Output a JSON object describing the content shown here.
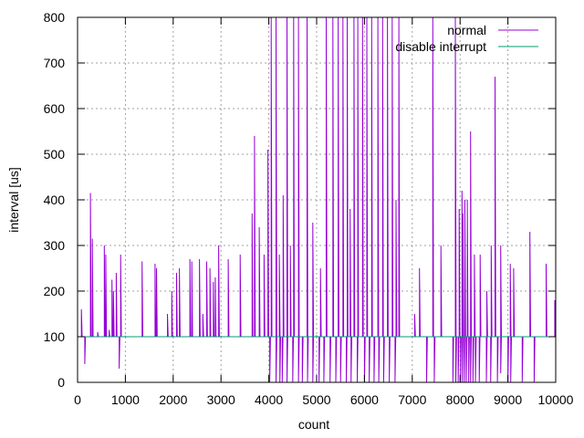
{
  "chart_data": {
    "type": "line",
    "title": "",
    "xlabel": "count",
    "ylabel": "interval [us]",
    "xlim": [
      0,
      10000
    ],
    "ylim": [
      0,
      800
    ],
    "x_ticks": [
      0,
      1000,
      2000,
      3000,
      4000,
      5000,
      6000,
      7000,
      8000,
      9000,
      10000
    ],
    "y_ticks": [
      0,
      100,
      200,
      300,
      400,
      500,
      600,
      700,
      800
    ],
    "x_tick_labels": [
      "0",
      "1000",
      "2000",
      "3000",
      "4000",
      "5000",
      "6000",
      "7000",
      "8000",
      "9000",
      "10000"
    ],
    "y_tick_labels": [
      "0",
      "100",
      "200",
      "300",
      "400",
      "500",
      "600",
      "700",
      "800"
    ],
    "grid": true,
    "legend_position": "top-right",
    "series": [
      {
        "name": "normal",
        "color": "#9400d3",
        "baseline": 100,
        "spikes": [
          [
            80,
            160
          ],
          [
            150,
            40
          ],
          [
            270,
            415
          ],
          [
            310,
            315
          ],
          [
            420,
            110
          ],
          [
            560,
            300
          ],
          [
            590,
            280
          ],
          [
            660,
            115
          ],
          [
            720,
            225
          ],
          [
            750,
            200
          ],
          [
            810,
            240
          ],
          [
            870,
            30
          ],
          [
            900,
            280
          ],
          [
            1350,
            265
          ],
          [
            1620,
            260
          ],
          [
            1650,
            250
          ],
          [
            1880,
            150
          ],
          [
            1970,
            200
          ],
          [
            2070,
            240
          ],
          [
            2130,
            250
          ],
          [
            2350,
            270
          ],
          [
            2390,
            265
          ],
          [
            2550,
            270
          ],
          [
            2620,
            150
          ],
          [
            2700,
            265
          ],
          [
            2770,
            250
          ],
          [
            2840,
            220
          ],
          [
            2880,
            230
          ],
          [
            2950,
            300
          ],
          [
            3050,
            100
          ],
          [
            3150,
            270
          ],
          [
            3400,
            280
          ],
          [
            3650,
            370
          ],
          [
            3700,
            540
          ],
          [
            3800,
            340
          ],
          [
            3900,
            280
          ],
          [
            3980,
            510
          ],
          [
            4050,
            800
          ],
          [
            4150,
            800
          ],
          [
            4220,
            280
          ],
          [
            4300,
            410
          ],
          [
            4380,
            800
          ],
          [
            4450,
            300
          ],
          [
            4520,
            800
          ],
          [
            4620,
            800
          ],
          [
            4800,
            800
          ],
          [
            4920,
            350
          ],
          [
            5080,
            250
          ],
          [
            5200,
            800
          ],
          [
            5340,
            800
          ],
          [
            5450,
            800
          ],
          [
            5550,
            800
          ],
          [
            5640,
            800
          ],
          [
            5700,
            380
          ],
          [
            5780,
            800
          ],
          [
            5860,
            800
          ],
          [
            5960,
            800
          ],
          [
            6050,
            800
          ],
          [
            6150,
            800
          ],
          [
            6280,
            800
          ],
          [
            6380,
            800
          ],
          [
            6480,
            800
          ],
          [
            6580,
            800
          ],
          [
            6660,
            400
          ],
          [
            6720,
            800
          ],
          [
            7050,
            150
          ],
          [
            7150,
            250
          ],
          [
            7430,
            800
          ],
          [
            7600,
            300
          ],
          [
            7900,
            800
          ],
          [
            7980,
            380
          ],
          [
            8040,
            420
          ],
          [
            8060,
            370
          ],
          [
            8100,
            400
          ],
          [
            8150,
            400
          ],
          [
            8220,
            550
          ],
          [
            8300,
            280
          ],
          [
            8420,
            280
          ],
          [
            8560,
            200
          ],
          [
            8650,
            300
          ],
          [
            8730,
            670
          ],
          [
            8850,
            300
          ],
          [
            9050,
            260
          ],
          [
            9120,
            250
          ],
          [
            9460,
            330
          ],
          [
            9800,
            260
          ],
          [
            9980,
            180
          ]
        ],
        "dropouts": [
          [
            4020,
            0
          ],
          [
            4150,
            0
          ],
          [
            4230,
            0
          ],
          [
            4280,
            0
          ],
          [
            4380,
            0
          ],
          [
            4500,
            0
          ],
          [
            4620,
            0
          ],
          [
            4700,
            0
          ],
          [
            4810,
            0
          ],
          [
            4920,
            0
          ],
          [
            5050,
            0
          ],
          [
            5150,
            0
          ],
          [
            5280,
            0
          ],
          [
            5400,
            0
          ],
          [
            5500,
            0
          ],
          [
            5620,
            0
          ],
          [
            5720,
            0
          ],
          [
            5850,
            0
          ],
          [
            6000,
            0
          ],
          [
            6100,
            0
          ],
          [
            6200,
            0
          ],
          [
            6300,
            0
          ],
          [
            6400,
            0
          ],
          [
            6520,
            0
          ],
          [
            6640,
            0
          ],
          [
            7300,
            0
          ],
          [
            7460,
            0
          ],
          [
            7850,
            0
          ],
          [
            7910,
            0
          ],
          [
            7960,
            0
          ],
          [
            8010,
            0
          ],
          [
            8050,
            0
          ],
          [
            8090,
            0
          ],
          [
            8130,
            0
          ],
          [
            8180,
            0
          ],
          [
            8220,
            0
          ],
          [
            8270,
            0
          ],
          [
            8320,
            0
          ],
          [
            8400,
            0
          ],
          [
            8550,
            0
          ],
          [
            8640,
            0
          ],
          [
            8780,
            0
          ],
          [
            8850,
            20
          ],
          [
            9000,
            0
          ],
          [
            9060,
            0
          ],
          [
            9300,
            0
          ],
          [
            9550,
            0
          ]
        ]
      },
      {
        "name": "disable interrupt",
        "color": "#009e73",
        "baseline": 100,
        "spikes": [
          [
            1000,
            101
          ],
          [
            2000,
            102
          ],
          [
            3000,
            101
          ],
          [
            5000,
            102
          ],
          [
            7000,
            101
          ],
          [
            8000,
            102
          ],
          [
            9000,
            101
          ]
        ],
        "dropouts": []
      }
    ]
  }
}
